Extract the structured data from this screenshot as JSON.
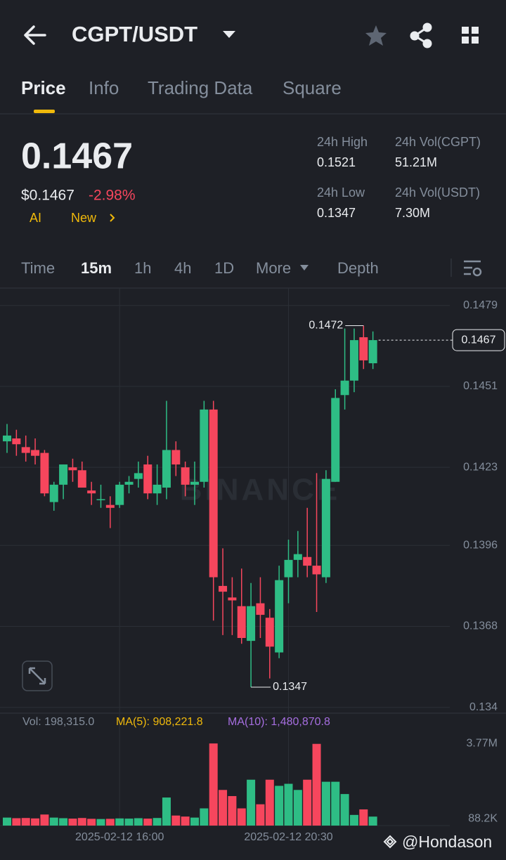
{
  "header": {
    "title": "CGPT/USDT"
  },
  "tabs": [
    "Price",
    "Info",
    "Trading Data",
    "Square"
  ],
  "ticker": {
    "price": "0.1467",
    "usd_price": "$0.1467",
    "change": "-2.98%",
    "badge_ai": "AI",
    "badge_new": "New",
    "stats": [
      {
        "label": "24h High",
        "value": "0.1521"
      },
      {
        "label": "24h Vol(CGPT)",
        "value": "51.21M"
      },
      {
        "label": "24h Low",
        "value": "0.1347"
      },
      {
        "label": "24h Vol(USDT)",
        "value": "7.30M"
      }
    ]
  },
  "intervals": [
    "Time",
    "15m",
    "1h",
    "4h",
    "1D",
    "More",
    "Depth"
  ],
  "chart_data": {
    "type": "candlestick",
    "watermark": "BINANCE",
    "categories": [
      null,
      null,
      null,
      null,
      null,
      null,
      null,
      null,
      null,
      null,
      null,
      null,
      "2025-02-12 16:00",
      null,
      null,
      null,
      null,
      null,
      null,
      null,
      null,
      null,
      null,
      null,
      null,
      null,
      null,
      null,
      null,
      null,
      "2025-02-12 20:30",
      null,
      null,
      null,
      null,
      null,
      null,
      null,
      null,
      null
    ],
    "open": [
      0.1432,
      0.1433,
      0.143,
      0.1429,
      0.1428,
      0.1411,
      0.1417,
      0.1423,
      0.1422,
      0.1415,
      0.1412,
      0.141,
      0.141,
      0.1417,
      0.1419,
      0.1424,
      0.1414,
      0.1416,
      0.1429,
      0.1423,
      0.1417,
      0.1418,
      0.1443,
      0.1382,
      0.1378,
      0.1375,
      0.1363,
      0.1376,
      0.1371,
      0.1359,
      0.1385,
      0.1391,
      0.1392,
      0.1389,
      0.1385,
      0.1418,
      0.1448,
      0.1453,
      0.1468,
      0.1459
    ],
    "high": [
      0.1438,
      0.1436,
      0.1434,
      0.1433,
      0.1429,
      0.1418,
      0.1424,
      0.1426,
      0.1425,
      0.1418,
      0.1417,
      0.1413,
      0.1418,
      0.142,
      0.1425,
      0.1427,
      0.1424,
      0.1446,
      0.1432,
      0.1425,
      0.1425,
      0.1446,
      0.1446,
      0.1395,
      0.1385,
      0.1388,
      0.1383,
      0.1385,
      0.1374,
      0.1389,
      0.1398,
      0.1401,
      0.1409,
      0.1421,
      0.1422,
      0.145,
      0.1471,
      0.1471,
      0.1472,
      0.147
    ],
    "low": [
      0.1428,
      0.1427,
      0.1425,
      0.1424,
      0.1413,
      0.1408,
      0.1412,
      0.1418,
      0.1416,
      0.141,
      0.1409,
      0.1402,
      0.1409,
      0.1414,
      0.1416,
      0.1412,
      0.141,
      0.1412,
      0.142,
      0.1413,
      0.141,
      0.1416,
      0.137,
      0.1365,
      0.1365,
      0.1362,
      0.1347,
      0.1364,
      0.135,
      0.1357,
      0.1376,
      0.1385,
      0.1385,
      0.1373,
      0.1383,
      0.1418,
      0.1443,
      0.1449,
      0.1457,
      0.1457
    ],
    "close": [
      0.1434,
      0.1431,
      0.1428,
      0.1427,
      0.1414,
      0.1417,
      0.1424,
      0.1422,
      0.1416,
      0.1414,
      0.1412,
      0.1409,
      0.1417,
      0.1418,
      0.1421,
      0.1414,
      0.1417,
      0.1429,
      0.1424,
      0.1417,
      0.1418,
      0.1443,
      0.1385,
      0.138,
      0.1377,
      0.1364,
      0.1375,
      0.1372,
      0.1361,
      0.1384,
      0.1391,
      0.1393,
      0.1389,
      0.1386,
      0.1419,
      0.1447,
      0.1453,
      0.1467,
      0.146,
      0.1467
    ],
    "ylim": [
      0.1338,
      0.1485
    ],
    "yticks": [
      0.1479,
      0.1451,
      0.1423,
      0.1396,
      0.1368,
      0.134
    ],
    "max_label": 0.1472,
    "min_label": 0.1347,
    "last_price": 0.1467,
    "up_color": "#2ebd85",
    "down_color": "#f6465d",
    "volume": [
      150000,
      120000,
      130000,
      110000,
      300000,
      150000,
      120000,
      100000,
      130000,
      90000,
      80000,
      90000,
      110000,
      100000,
      120000,
      100000,
      130000,
      1130000,
      250000,
      200000,
      150000,
      600000,
      3770000,
      1500000,
      1200000,
      600000,
      2000000,
      800000,
      2000000,
      1700000,
      1800000,
      1500000,
      2000000,
      3750000,
      1900000,
      1900000,
      1300000,
      280000,
      550000,
      198315
    ],
    "vlim": [
      0,
      5250000
    ],
    "vticks": [
      {
        "value": 3770000,
        "label": "3.77M"
      },
      {
        "value": 88200,
        "label": "88.2K"
      }
    ],
    "vol_label": "Vol: 198,315.0",
    "ma5_label": "MA(5): 908,221.8",
    "ma10_label": "MA(10): 1,480,870.8"
  },
  "footer": {
    "credit": "@Hondason"
  }
}
